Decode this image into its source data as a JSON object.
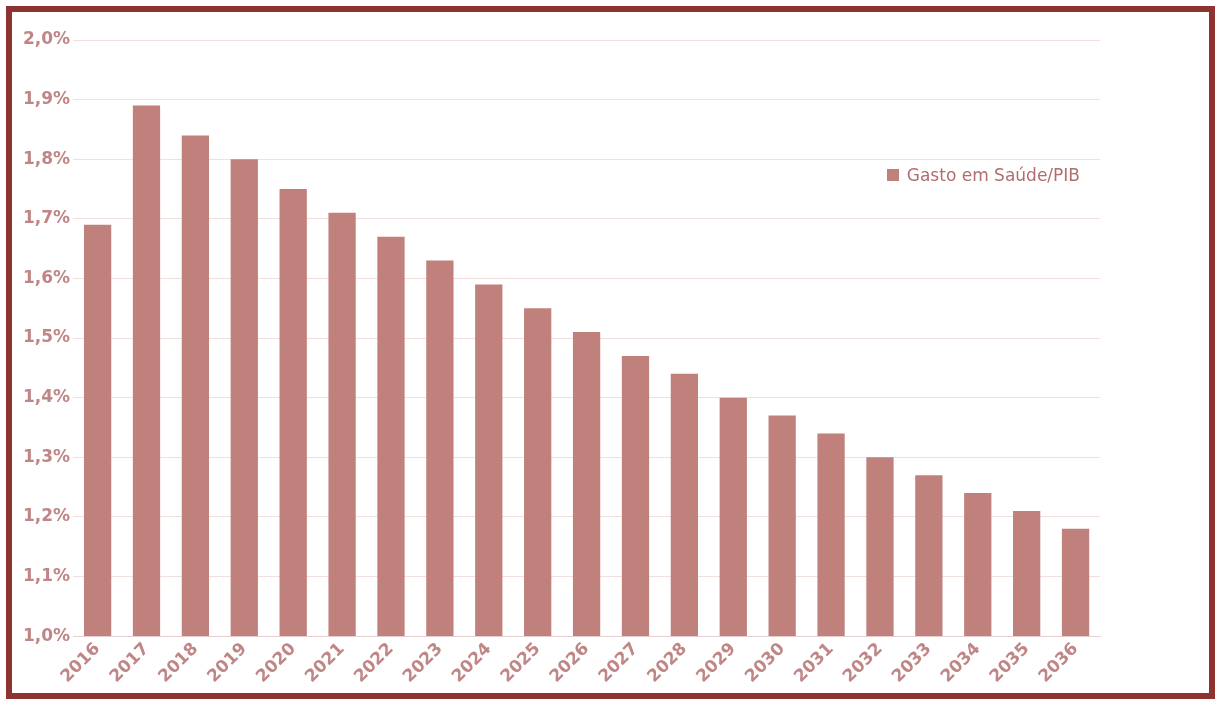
{
  "chart_data": {
    "type": "bar",
    "categories": [
      "2016",
      "2017",
      "2018",
      "2019",
      "2020",
      "2021",
      "2022",
      "2023",
      "2024",
      "2025",
      "2026",
      "2027",
      "2028",
      "2029",
      "2030",
      "2031",
      "2032",
      "2033",
      "2034",
      "2035",
      "2036"
    ],
    "series": [
      {
        "name": "Gasto em Saúde/PIB",
        "color": "#c0807c",
        "values": [
          1.69,
          1.89,
          1.84,
          1.8,
          1.75,
          1.71,
          1.67,
          1.63,
          1.59,
          1.55,
          1.51,
          1.47,
          1.44,
          1.4,
          1.37,
          1.34,
          1.3,
          1.27,
          1.24,
          1.21,
          1.18
        ]
      }
    ],
    "ylim": [
      1.0,
      2.0
    ],
    "yticks": [
      {
        "value": 1.0,
        "label": "1,0%"
      },
      {
        "value": 1.1,
        "label": "1,1%"
      },
      {
        "value": 1.2,
        "label": "1,2%"
      },
      {
        "value": 1.3,
        "label": "1,3%"
      },
      {
        "value": 1.4,
        "label": "1,4%"
      },
      {
        "value": 1.5,
        "label": "1,5%"
      },
      {
        "value": 1.6,
        "label": "1,6%"
      },
      {
        "value": 1.7,
        "label": "1,7%"
      },
      {
        "value": 1.8,
        "label": "1,8%"
      },
      {
        "value": 1.9,
        "label": "1,9%"
      },
      {
        "value": 2.0,
        "label": "2,0%"
      }
    ],
    "grid": "y",
    "legend": "top right"
  }
}
